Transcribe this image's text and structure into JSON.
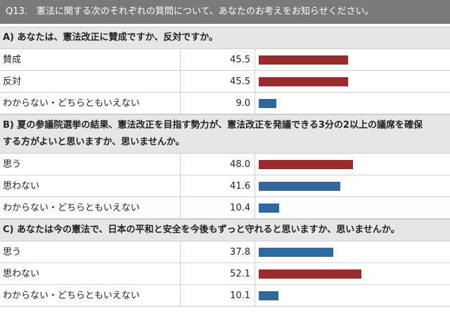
{
  "header": {
    "text": "Q13.　憲法に関する次のそれぞれの質問について、あなたのお考えをお知らせください。"
  },
  "colors": {
    "header_bg": "#7a7a7a",
    "section_bg": "#e6e6e6",
    "bar_red": "#9b2a2a",
    "bar_blue": "#2e6aa0"
  },
  "chart_data": [
    {
      "type": "bar",
      "title": "A) あなたは、憲法改正に賛成ですか、反対ですか。",
      "categories": [
        "賛成",
        "反対",
        "わからない・どちらともいえない"
      ],
      "values": [
        45.5,
        45.5,
        9.0
      ],
      "value_labels": [
        "45.5",
        "45.5",
        "9.0"
      ],
      "bar_colors": [
        "red",
        "red",
        "blue"
      ]
    },
    {
      "type": "bar",
      "title": "B) 夏の参議院選挙の結果、憲法改正を目指す勢力が、憲法改正を発議できる3分の2以上の議席を確保する方がよいと思いますか、思いませんか。",
      "title_lines": [
        "B) 夏の参議院選挙の結果、憲法改正を目指す勢力が、憲法改正を発議できる3分の2以上の議席を確保",
        "する方がよいと思いますか、思いませんか。"
      ],
      "categories": [
        "思う",
        "思わない",
        "わからない・どちらともいえない"
      ],
      "values": [
        48.0,
        41.6,
        10.4
      ],
      "value_labels": [
        "48.0",
        "41.6",
        "10.4"
      ],
      "bar_colors": [
        "red",
        "blue",
        "blue"
      ]
    },
    {
      "type": "bar",
      "title": "C) あなたは今の憲法で、日本の平和と安全を今後もずっと守れると思いますか、思いませんか。",
      "categories": [
        "思う",
        "思わない",
        "わからない・どちらともいえない"
      ],
      "values": [
        37.8,
        52.1,
        10.1
      ],
      "value_labels": [
        "37.8",
        "52.1",
        "10.1"
      ],
      "bar_colors": [
        "blue",
        "red",
        "blue"
      ]
    }
  ]
}
